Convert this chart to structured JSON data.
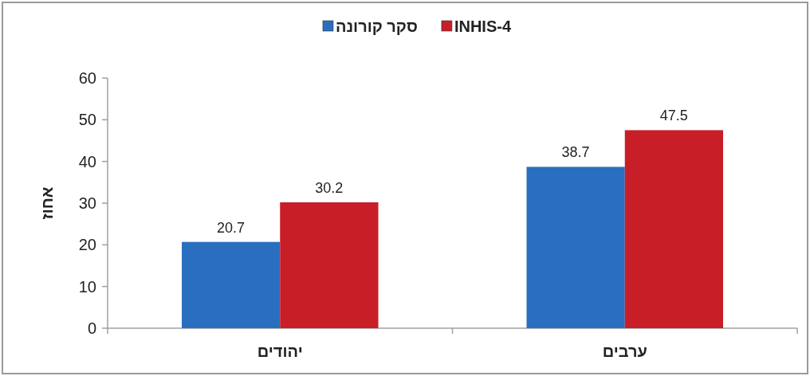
{
  "chart_data": {
    "type": "bar",
    "ylabel": "אחוז",
    "categories": [
      "יהודים",
      "ערבים"
    ],
    "series": [
      {
        "name": "סקר קורונה",
        "color": "#2a6ebf",
        "values": [
          20.7,
          38.7
        ]
      },
      {
        "name": "INHIS-4",
        "color": "#c81e28",
        "values": [
          30.2,
          47.5
        ]
      }
    ],
    "ylim": [
      0,
      60
    ],
    "yticks": [
      0,
      10,
      20,
      30,
      40,
      50,
      60
    ],
    "data_labels": true,
    "legend": "top",
    "grid": false
  }
}
